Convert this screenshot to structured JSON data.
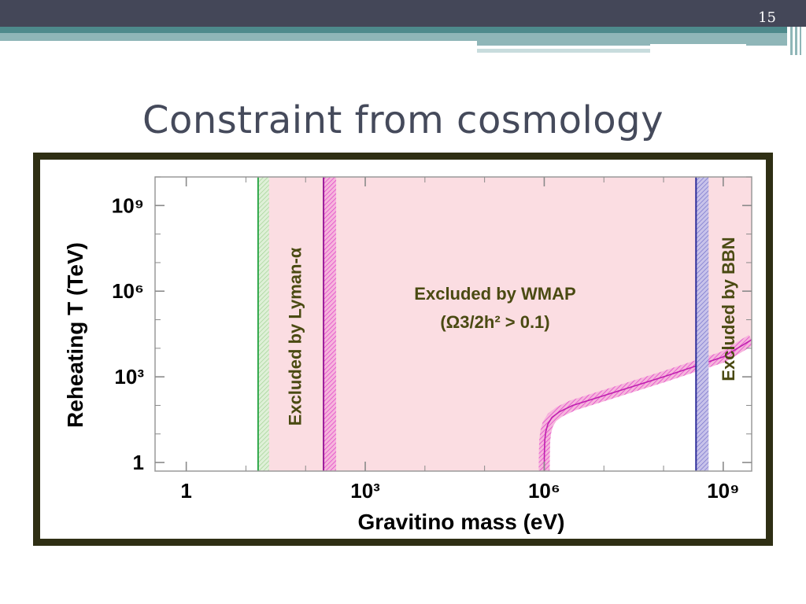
{
  "slide": {
    "number": "15",
    "title": "Constraint from cosmology"
  },
  "colors": {
    "header_dark": "#444758",
    "teal": "#4e8a8c",
    "excluded_fill": "#fbdde2",
    "hatch_magenta": "#e03cc8",
    "lyman_line": "#2fa84a",
    "bbn_line": "#2e2e9a",
    "label_olive": "#4a4a12"
  },
  "chart_data": {
    "type": "area",
    "xlabel": "Gravitino mass (eV)",
    "ylabel": "Reheating T (TeV)",
    "xscale": "log",
    "yscale": "log",
    "xlim": [
      0.3,
      3000000000
    ],
    "ylim": [
      0.5,
      10000000000
    ],
    "x_ticks": [
      "1",
      "10³",
      "10⁶",
      "10⁹"
    ],
    "y_ticks": [
      "1",
      "10³",
      "10⁶",
      "10⁹"
    ],
    "regions": [
      {
        "name": "lyman",
        "label": "Excluded by Lyman-α",
        "x_from": 16,
        "x_to": 200
      },
      {
        "name": "wmap",
        "label_line1": "Excluded by WMAP",
        "label_line2": "(Ω3/2h² > 0.1)",
        "x_from": 200,
        "x_to": 3000000000
      },
      {
        "name": "bbn",
        "label": "Excluded by BBN",
        "x_from": 350000000,
        "x_to": 3000000000
      }
    ],
    "lines": [
      {
        "name": "lyman-bound",
        "x": 16
      },
      {
        "name": "wmap-lower-bound",
        "x": 200
      },
      {
        "name": "bbn-bound",
        "x": 350000000
      }
    ],
    "wmap_curve": {
      "x": [
        1000000,
        1005000,
        1020000,
        1060000,
        1150000,
        1350000,
        1800000,
        3000000,
        10000000,
        100000000,
        1000000000,
        3000000000
      ],
      "y": [
        0.5,
        2,
        6,
        12,
        22,
        38,
        60,
        100,
        220,
        1000,
        5000,
        20000
      ]
    }
  }
}
